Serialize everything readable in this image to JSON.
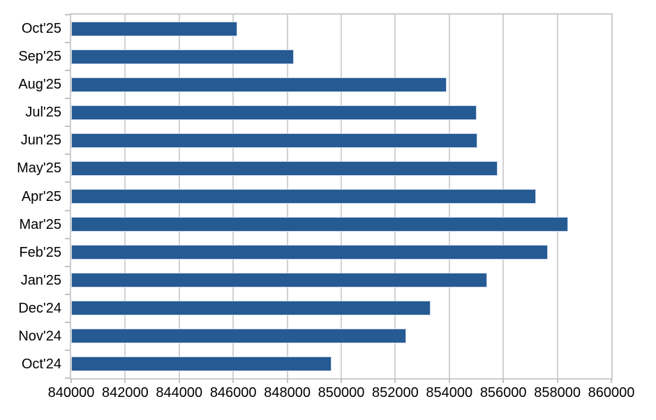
{
  "chart_data": {
    "type": "bar",
    "orientation": "horizontal",
    "title": "",
    "xlabel": "",
    "ylabel": "",
    "legend": "none",
    "grid": "vertical major gridlines, full plot border",
    "categories_top_to_bottom": [
      "Oct'25",
      "Sep'25",
      "Aug'25",
      "Jul'25",
      "Jun'25",
      "May'25",
      "Apr'25",
      "Mar'25",
      "Feb'25",
      "Jan'25",
      "Dec'24",
      "Nov'24",
      "Oct'24"
    ],
    "values_top_to_bottom": [
      846150,
      848250,
      853900,
      855000,
      855050,
      855800,
      857200,
      858400,
      857650,
      855400,
      853300,
      852400,
      849650
    ],
    "xlim": [
      840000,
      860000
    ],
    "xticks": [
      840000,
      842000,
      844000,
      846000,
      848000,
      850000,
      852000,
      854000,
      856000,
      858000,
      860000
    ],
    "xtick_labels": [
      "840000",
      "842000",
      "844000",
      "846000",
      "848000",
      "850000",
      "852000",
      "854000",
      "856000",
      "858000",
      "860000"
    ],
    "colors": {
      "bar_fill": "#265a93",
      "bar_border": "#c9d6e8",
      "grid": "#d2d2d2",
      "plot_border": "#cccccc",
      "tick": "#c2c2c2",
      "axis_text": "#000000",
      "background": "#ffffff"
    }
  }
}
